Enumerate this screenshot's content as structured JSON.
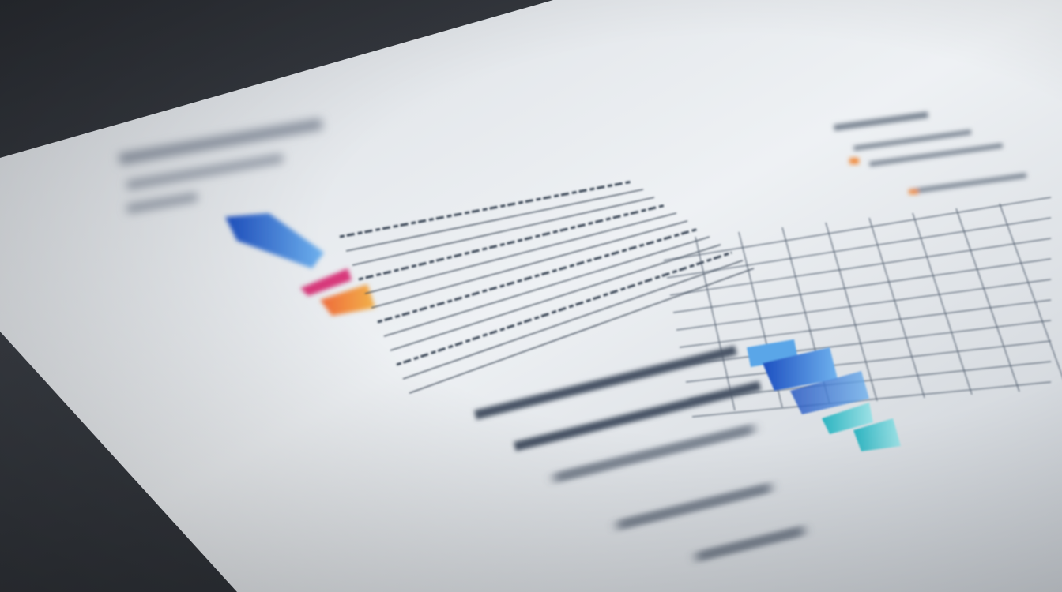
{
  "scene": {
    "subject": "printed-report-sheet",
    "background_color": "#2e3137",
    "paper_color": "#eef1f4",
    "ink_color": "#3a4656",
    "accent_colors": {
      "blue": "#2f6fd6",
      "light_blue": "#5aa6e8",
      "teal": "#3fc1c9",
      "magenta": "#d8387a",
      "orange": "#f08a3c"
    }
  }
}
